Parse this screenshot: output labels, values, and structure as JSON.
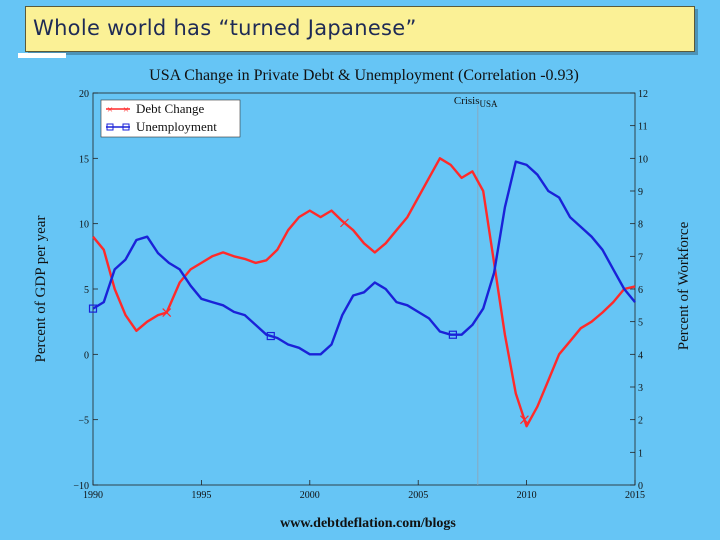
{
  "slide": {
    "heading": "Whole world has “turned Japanese”",
    "colors": {
      "background": "#66c5f5",
      "heading_bg": "#fbf196",
      "heading_text": "#1e2a55"
    }
  },
  "chart_data": {
    "type": "line",
    "title": "USA Change in Private Debt & Unemployment (Correlation -0.93)",
    "source_note": "www.debtdeflation.com/blogs",
    "annotation": "Crisis",
    "annotation_sub": "USA",
    "annotation_x": 2007.75,
    "ylabel_left": "Percent of GDP per year",
    "ylabel_right": "Percent of Workforce",
    "xlim": [
      1990,
      2015
    ],
    "x_ticks": [
      1990,
      1995,
      2000,
      2005,
      2010,
      2015
    ],
    "ylim_left": [
      -10,
      20
    ],
    "y_ticks_left": [
      -10,
      -5,
      0,
      5,
      10,
      15,
      20
    ],
    "y_tick_labels_left": [
      "−10",
      "−5",
      "0",
      "5",
      "10",
      "15",
      "20"
    ],
    "ylim_right": [
      0,
      12
    ],
    "y_ticks_right": [
      0,
      1,
      2,
      3,
      4,
      5,
      6,
      7,
      8,
      9,
      10,
      11,
      12
    ],
    "legend_position": "top-left",
    "series": [
      {
        "name": "Debt Change",
        "axis": "left",
        "color": "#ff2a2a",
        "marker": "x",
        "markers_at": [
          1993.4,
          2001.6,
          2009.9
        ],
        "x": [
          1990,
          1990.5,
          1991,
          1991.5,
          1992,
          1992.5,
          1993,
          1993.4,
          1994,
          1994.5,
          1995,
          1995.5,
          1996,
          1996.5,
          1997,
          1997.5,
          1998,
          1998.5,
          1999,
          1999.5,
          2000,
          2000.5,
          2001,
          2001.5,
          2002,
          2002.5,
          2003,
          2003.5,
          2004,
          2004.5,
          2005,
          2005.5,
          2006,
          2006.5,
          2007,
          2007.5,
          2008,
          2008.5,
          2009,
          2009.5,
          2010,
          2010.5,
          2011,
          2011.5,
          2012,
          2012.5,
          2013,
          2013.5,
          2014,
          2014.5,
          2015
        ],
        "values": [
          9,
          8,
          5,
          3,
          1.8,
          2.5,
          3,
          3.2,
          5.5,
          6.5,
          7,
          7.5,
          7.8,
          7.5,
          7.3,
          7,
          7.2,
          8,
          9.5,
          10.5,
          11,
          10.5,
          11,
          10.2,
          9.5,
          8.5,
          7.8,
          8.5,
          9.5,
          10.5,
          12,
          13.5,
          15,
          14.5,
          13.5,
          14,
          12.5,
          7,
          1.5,
          -3,
          -5.5,
          -4,
          -2,
          0,
          1,
          2,
          2.5,
          3.2,
          4,
          5,
          5.2
        ]
      },
      {
        "name": "Unemployment",
        "axis": "right",
        "color": "#1a22d8",
        "marker": "square",
        "markers_at": [
          1990,
          1998.2,
          2006.6
        ],
        "x": [
          1990,
          1990.5,
          1991,
          1991.5,
          1992,
          1992.5,
          1993,
          1993.5,
          1994,
          1994.5,
          1995,
          1995.5,
          1996,
          1996.5,
          1997,
          1997.5,
          1998,
          1998.5,
          1999,
          1999.5,
          2000,
          2000.5,
          2001,
          2001.5,
          2002,
          2002.5,
          2003,
          2003.5,
          2004,
          2004.5,
          2005,
          2005.5,
          2006,
          2006.5,
          2007,
          2007.5,
          2008,
          2008.5,
          2009,
          2009.5,
          2010,
          2010.5,
          2011,
          2011.5,
          2012,
          2012.5,
          2013,
          2013.5,
          2014,
          2014.5,
          2015
        ],
        "values": [
          5.4,
          5.6,
          6.6,
          6.9,
          7.5,
          7.6,
          7.1,
          6.8,
          6.6,
          6.1,
          5.7,
          5.6,
          5.5,
          5.3,
          5.2,
          4.9,
          4.6,
          4.5,
          4.3,
          4.2,
          4.0,
          4.0,
          4.3,
          5.2,
          5.8,
          5.9,
          6.2,
          6.0,
          5.6,
          5.5,
          5.3,
          5.1,
          4.7,
          4.6,
          4.6,
          4.9,
          5.4,
          6.5,
          8.5,
          9.9,
          9.8,
          9.5,
          9.0,
          8.8,
          8.2,
          7.9,
          7.6,
          7.2,
          6.6,
          6.0,
          5.6
        ]
      }
    ]
  }
}
